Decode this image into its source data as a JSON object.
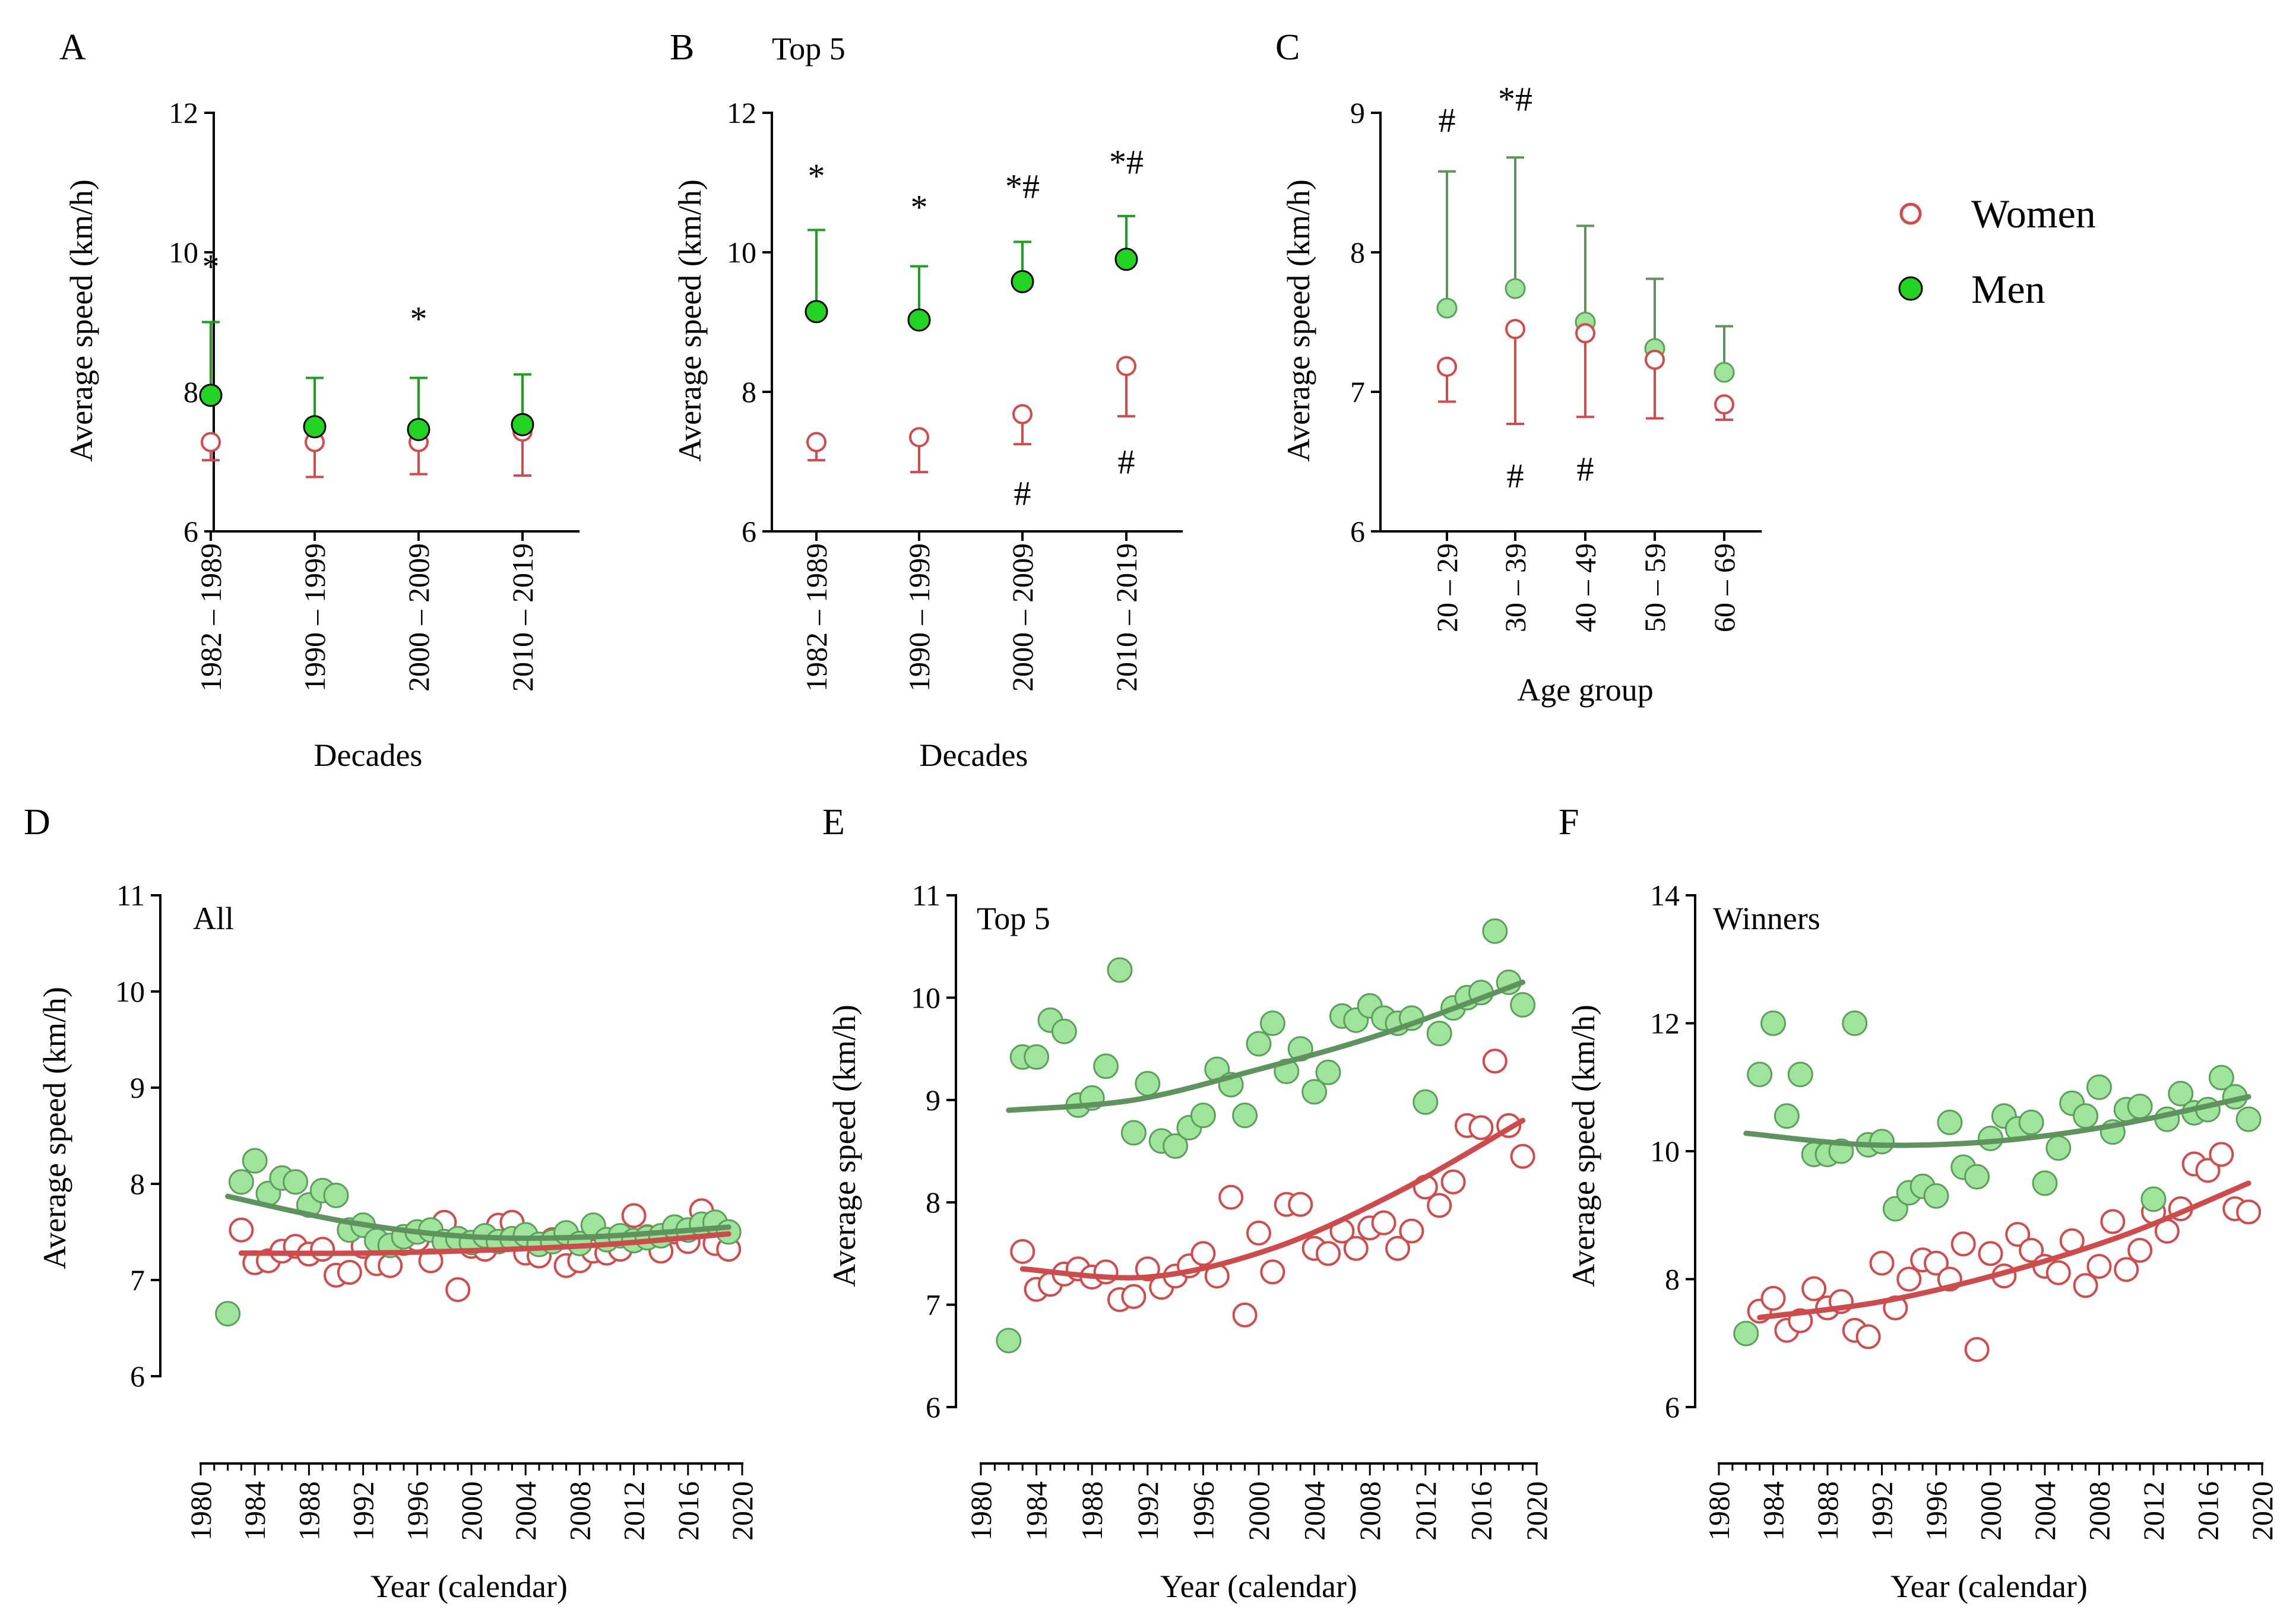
{
  "colors": {
    "women": "#d24a4a",
    "men_fill": "#22d422",
    "men_err": "#1f9e1f",
    "men_light_fill": "#9fe49b",
    "men_light_stroke": "#5aa05a",
    "men_trend": "#5e935e",
    "women_trend": "#cf4a4a",
    "axis": "#000000"
  },
  "legend": {
    "women": "Women",
    "men": "Men"
  },
  "chart_data": [
    {
      "panel": "A",
      "type": "errorbar",
      "title": "",
      "xlabel": "Decades",
      "ylabel": "Average speed (km/h)",
      "ylim": [
        6,
        12
      ],
      "yticks": [
        6,
        8,
        10,
        12
      ],
      "categories": [
        "1982 – 1989",
        "1990 – 1999",
        "2000 – 2009",
        "2010 – 2019"
      ],
      "series": [
        {
          "name": "Women",
          "mean": [
            7.28,
            7.28,
            7.28,
            7.43
          ],
          "err_low": [
            7.02,
            6.78,
            6.82,
            6.8
          ],
          "err_high": [
            null,
            null,
            null,
            null
          ]
        },
        {
          "name": "Men",
          "mean": [
            7.95,
            7.5,
            7.46,
            7.53
          ],
          "err_low": [
            null,
            null,
            null,
            null
          ],
          "err_high": [
            9.0,
            8.2,
            8.2,
            8.25
          ]
        }
      ],
      "annotations": [
        {
          "category": 0,
          "text": "*",
          "y": 9.8
        },
        {
          "category": 2,
          "text": "*",
          "y": 9.05
        }
      ]
    },
    {
      "panel": "B",
      "type": "errorbar",
      "title": "Top 5",
      "xlabel": "Decades",
      "ylabel": "Average speed (km/h)",
      "ylim": [
        6,
        12
      ],
      "yticks": [
        6,
        8,
        10,
        12
      ],
      "categories": [
        "1982 – 1989",
        "1990 – 1999",
        "2000 – 2009",
        "2010 – 2019"
      ],
      "series": [
        {
          "name": "Women",
          "mean": [
            7.28,
            7.35,
            7.68,
            8.37
          ],
          "err_low": [
            7.02,
            6.85,
            7.25,
            7.65
          ],
          "err_high": [
            null,
            null,
            null,
            null
          ]
        },
        {
          "name": "Men",
          "mean": [
            9.15,
            9.03,
            9.58,
            9.9
          ],
          "err_low": [
            null,
            null,
            null,
            null
          ],
          "err_high": [
            10.32,
            9.8,
            10.15,
            10.52
          ]
        }
      ],
      "annotations": [
        {
          "category": 0,
          "text": "*",
          "y": 11.1
        },
        {
          "category": 1,
          "text": "*",
          "y": 10.65
        },
        {
          "category": 2,
          "text": "*#",
          "y": 10.95
        },
        {
          "category": 3,
          "text": "*#",
          "y": 11.3
        },
        {
          "category": 2,
          "text": "#",
          "y": 6.55
        },
        {
          "category": 3,
          "text": "#",
          "y": 7.0
        }
      ]
    },
    {
      "panel": "C",
      "type": "errorbar",
      "title": "",
      "xlabel": "Age group",
      "ylabel": "Average speed (km/h)",
      "ylim": [
        6,
        9
      ],
      "yticks": [
        6,
        7,
        8,
        9
      ],
      "categories": [
        "20 – 29",
        "30 – 39",
        "40 – 49",
        "50 – 59",
        "60 – 69"
      ],
      "series": [
        {
          "name": "Women",
          "mean": [
            7.18,
            7.45,
            7.42,
            7.23,
            6.91
          ],
          "err_low": [
            6.93,
            6.77,
            6.82,
            6.81,
            6.8
          ],
          "err_high": [
            null,
            null,
            null,
            null,
            null
          ]
        },
        {
          "name": "Men",
          "mean": [
            7.6,
            7.74,
            7.5,
            7.31,
            7.14
          ],
          "err_low": [
            null,
            null,
            null,
            null,
            null
          ],
          "err_high": [
            8.58,
            8.68,
            8.19,
            7.81,
            7.47
          ]
        }
      ],
      "annotations": [
        {
          "category": 0,
          "text": "#",
          "y": 8.95
        },
        {
          "category": 1,
          "text": "*#",
          "y": 9.1
        },
        {
          "category": 1,
          "text": "#",
          "y": 6.4
        },
        {
          "category": 2,
          "text": "#",
          "y": 6.45
        }
      ]
    },
    {
      "panel": "D",
      "type": "scatter",
      "title": "All",
      "xlabel": "Year (calendar)",
      "ylabel": "Average speed (km/h)",
      "xlim": [
        1980,
        2020
      ],
      "xticks": [
        1980,
        1984,
        1988,
        1992,
        1996,
        2000,
        2004,
        2008,
        2012,
        2016,
        2020
      ],
      "ylim": [
        6,
        11
      ],
      "yticks": [
        6,
        7,
        8,
        9,
        10,
        11
      ],
      "series": [
        {
          "name": "Women",
          "x": [
            1983,
            1984,
            1985,
            1986,
            1987,
            1988,
            1989,
            1990,
            1991,
            1992,
            1993,
            1994,
            1995,
            1996,
            1997,
            1998,
            1999,
            2000,
            2001,
            2002,
            2003,
            2004,
            2005,
            2006,
            2007,
            2008,
            2009,
            2010,
            2011,
            2012,
            2013,
            2014,
            2015,
            2016,
            2017,
            2018,
            2019
          ],
          "y": [
            7.52,
            7.18,
            7.2,
            7.3,
            7.35,
            7.27,
            7.32,
            7.05,
            7.08,
            7.35,
            7.17,
            7.15,
            7.38,
            7.42,
            7.2,
            7.6,
            6.9,
            7.35,
            7.32,
            7.57,
            7.6,
            7.28,
            7.25,
            7.42,
            7.15,
            7.2,
            7.3,
            7.28,
            7.32,
            7.67,
            7.45,
            7.3,
            7.5,
            7.4,
            7.72,
            7.38,
            7.32
          ],
          "trend": {
            "x": [
              1983,
              1992,
              2001,
              2010,
              2019
            ],
            "y": [
              7.28,
              7.28,
              7.31,
              7.37,
              7.48
            ]
          }
        },
        {
          "name": "Men",
          "x": [
            1982,
            1983,
            1984,
            1985,
            1986,
            1987,
            1988,
            1989,
            1990,
            1991,
            1992,
            1993,
            1994,
            1995,
            1996,
            1997,
            1998,
            1999,
            2000,
            2001,
            2002,
            2003,
            2004,
            2005,
            2006,
            2007,
            2008,
            2009,
            2010,
            2011,
            2012,
            2013,
            2014,
            2015,
            2016,
            2017,
            2018,
            2019
          ],
          "y": [
            6.65,
            8.02,
            8.24,
            7.9,
            8.06,
            8.02,
            7.78,
            7.93,
            7.88,
            7.52,
            7.57,
            7.41,
            7.36,
            7.45,
            7.5,
            7.52,
            7.4,
            7.43,
            7.39,
            7.46,
            7.4,
            7.43,
            7.47,
            7.37,
            7.4,
            7.49,
            7.38,
            7.57,
            7.42,
            7.46,
            7.41,
            7.44,
            7.46,
            7.55,
            7.52,
            7.58,
            7.6,
            7.5
          ],
          "trend": {
            "x": [
              1982,
              1991,
              2000,
              2009,
              2019
            ],
            "y": [
              7.87,
              7.6,
              7.45,
              7.45,
              7.55
            ]
          }
        }
      ]
    },
    {
      "panel": "E",
      "type": "scatter",
      "title": "Top 5",
      "xlabel": "Year (calendar)",
      "ylabel": "Average speed (km/h)",
      "xlim": [
        1980,
        2020
      ],
      "xticks": [
        1980,
        1984,
        1988,
        1992,
        1996,
        2000,
        2004,
        2008,
        2012,
        2016,
        2020
      ],
      "ylim": [
        6,
        11
      ],
      "yticks": [
        6,
        7,
        8,
        9,
        10,
        11
      ],
      "series": [
        {
          "name": "Women",
          "x": [
            1983,
            1984,
            1985,
            1986,
            1987,
            1988,
            1989,
            1990,
            1991,
            1992,
            1993,
            1994,
            1995,
            1996,
            1997,
            1998,
            1999,
            2000,
            2001,
            2002,
            2003,
            2004,
            2005,
            2006,
            2007,
            2008,
            2009,
            2010,
            2011,
            2012,
            2013,
            2014,
            2015,
            2016,
            2017,
            2018,
            2019
          ],
          "y": [
            7.52,
            7.15,
            7.2,
            7.3,
            7.35,
            7.27,
            7.32,
            7.05,
            7.08,
            7.35,
            7.17,
            7.28,
            7.38,
            7.5,
            7.28,
            8.05,
            6.9,
            7.7,
            7.32,
            7.98,
            7.98,
            7.55,
            7.5,
            7.72,
            7.55,
            7.75,
            7.8,
            7.55,
            7.72,
            8.15,
            7.97,
            8.2,
            8.75,
            8.73,
            9.38,
            8.75,
            8.45
          ],
          "trend": {
            "x": [
              1983,
              1992,
              2001,
              2010,
              2019
            ],
            "y": [
              7.35,
              7.27,
              7.55,
              8.1,
              8.8
            ]
          }
        },
        {
          "name": "Men",
          "x": [
            1982,
            1983,
            1984,
            1985,
            1986,
            1987,
            1988,
            1989,
            1990,
            1991,
            1992,
            1993,
            1994,
            1995,
            1996,
            1997,
            1998,
            1999,
            2000,
            2001,
            2002,
            2003,
            2004,
            2005,
            2006,
            2007,
            2008,
            2009,
            2010,
            2011,
            2012,
            2013,
            2014,
            2015,
            2016,
            2017,
            2018,
            2019
          ],
          "y": [
            6.65,
            9.42,
            9.42,
            9.78,
            9.67,
            8.95,
            9.02,
            9.33,
            10.27,
            8.68,
            9.16,
            8.6,
            8.55,
            8.73,
            8.85,
            9.3,
            9.15,
            8.85,
            9.55,
            9.75,
            9.28,
            9.5,
            9.08,
            9.27,
            9.82,
            9.78,
            9.92,
            9.8,
            9.75,
            9.8,
            8.98,
            9.65,
            9.9,
            10.0,
            10.05,
            10.65,
            10.15,
            9.93
          ],
          "trend": {
            "x": [
              1982,
              1991,
              2000,
              2009,
              2019
            ],
            "y": [
              8.9,
              9.0,
              9.3,
              9.65,
              10.15
            ]
          }
        }
      ]
    },
    {
      "panel": "F",
      "type": "scatter",
      "title": "Winners",
      "xlabel": "Year (calendar)",
      "ylabel": "Average speed (km/h)",
      "xlim": [
        1980,
        2020
      ],
      "xticks": [
        1980,
        1984,
        1988,
        1992,
        1996,
        2000,
        2004,
        2008,
        2012,
        2016,
        2020
      ],
      "ylim": [
        6,
        14
      ],
      "yticks": [
        6,
        8,
        10,
        12,
        14
      ],
      "series": [
        {
          "name": "Women",
          "x": [
            1983,
            1984,
            1985,
            1986,
            1987,
            1988,
            1989,
            1990,
            1991,
            1992,
            1993,
            1994,
            1995,
            1996,
            1997,
            1998,
            1999,
            2000,
            2001,
            2002,
            2003,
            2004,
            2005,
            2006,
            2007,
            2008,
            2009,
            2010,
            2011,
            2012,
            2013,
            2014,
            2015,
            2016,
            2017,
            2018,
            2019
          ],
          "y": [
            7.5,
            7.7,
            7.2,
            7.35,
            7.85,
            7.55,
            7.65,
            7.2,
            7.1,
            8.25,
            7.55,
            8.0,
            8.3,
            8.25,
            8.0,
            8.55,
            6.9,
            8.4,
            8.05,
            8.7,
            8.45,
            8.2,
            8.1,
            8.6,
            7.9,
            8.2,
            8.9,
            8.15,
            8.45,
            9.05,
            8.75,
            9.1,
            9.8,
            9.7,
            9.95,
            9.1,
            9.05
          ],
          "trend": {
            "x": [
              1983,
              1992,
              2001,
              2010,
              2019
            ],
            "y": [
              7.4,
              7.65,
              8.1,
              8.7,
              9.5
            ]
          }
        },
        {
          "name": "Men",
          "x": [
            1982,
            1983,
            1984,
            1985,
            1986,
            1987,
            1988,
            1989,
            1990,
            1991,
            1992,
            1993,
            1994,
            1995,
            1996,
            1997,
            1998,
            1999,
            2000,
            2001,
            2002,
            2003,
            2004,
            2005,
            2006,
            2007,
            2008,
            2009,
            2010,
            2011,
            2012,
            2013,
            2014,
            2015,
            2016,
            2017,
            2018,
            2019
          ],
          "y": [
            7.15,
            11.2,
            12.0,
            10.55,
            11.2,
            9.95,
            9.95,
            10.0,
            12.0,
            10.1,
            10.15,
            9.1,
            9.35,
            9.45,
            9.3,
            10.45,
            9.75,
            9.6,
            10.2,
            10.55,
            10.35,
            10.45,
            9.5,
            10.05,
            10.75,
            10.55,
            11.0,
            10.3,
            10.65,
            10.7,
            9.25,
            10.5,
            10.9,
            10.6,
            10.65,
            11.15,
            10.85,
            10.5
          ],
          "trend": {
            "x": [
              1982,
              1991,
              2000,
              2009,
              2019
            ],
            "y": [
              10.28,
              10.1,
              10.15,
              10.4,
              10.85
            ]
          }
        }
      ]
    }
  ]
}
